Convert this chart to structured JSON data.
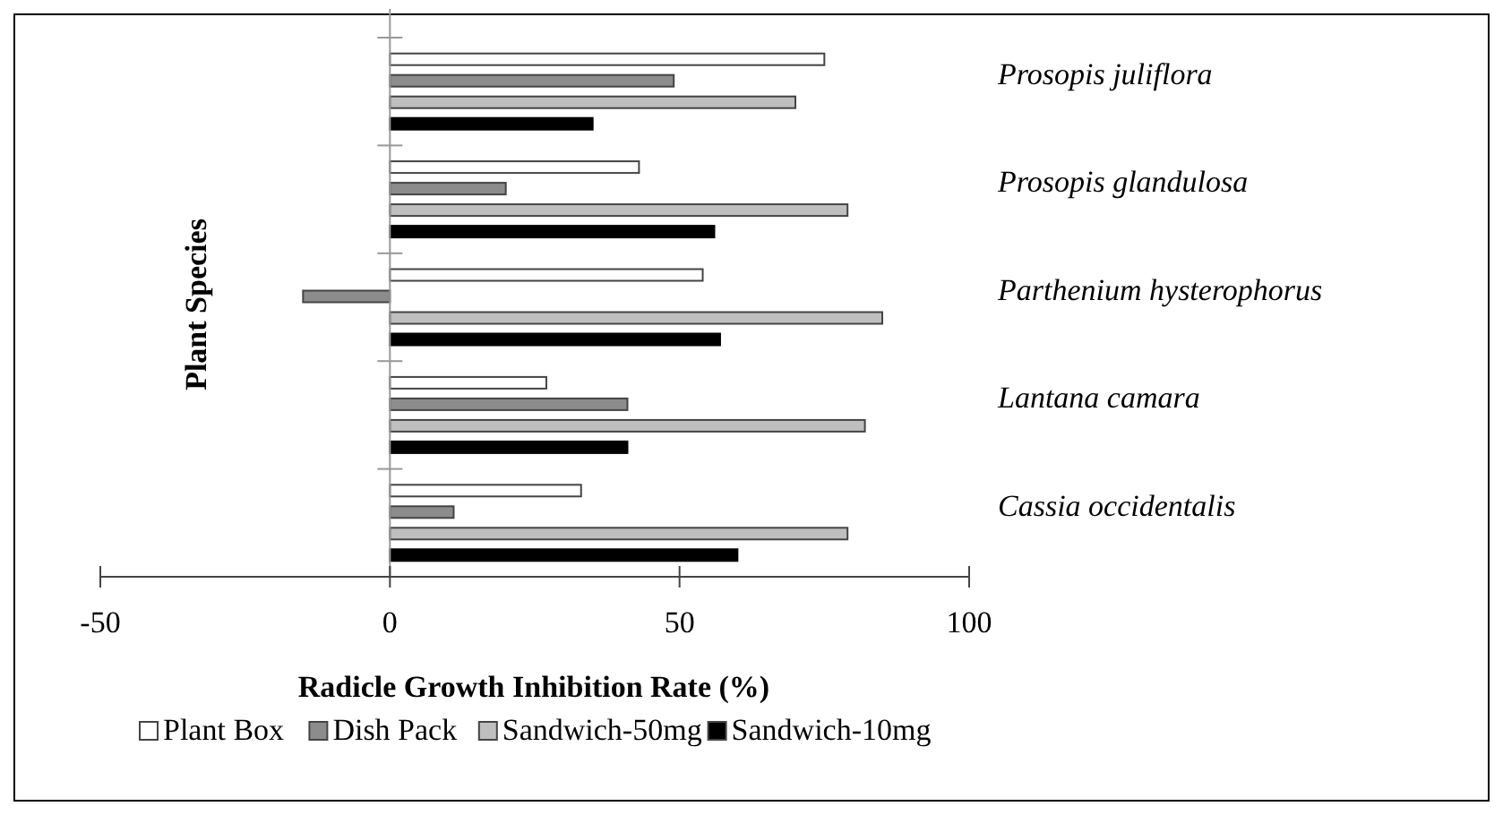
{
  "chart_data": {
    "type": "bar",
    "orientation": "horizontal",
    "xlabel": "Radicle Growth Inhibition Rate (%)",
    "ylabel": "Plant Species",
    "categories": [
      "Prosopis juliflora",
      "Prosopis glandulosa",
      "Parthenium hysterophorus",
      "Lantana camara",
      "Cassia occidentalis"
    ],
    "series": [
      {
        "name": "Plant Box",
        "color": "#ffffff",
        "values": [
          75,
          43,
          54,
          27,
          33
        ]
      },
      {
        "name": "Dish Pack",
        "color": "#8c8c8c",
        "values": [
          49,
          20,
          -15,
          41,
          11
        ]
      },
      {
        "name": "Sandwich-50mg",
        "color": "#bfbfbf",
        "values": [
          70,
          79,
          85,
          82,
          79
        ]
      },
      {
        "name": "Sandwich-10mg",
        "color": "#000000",
        "values": [
          35,
          56,
          57,
          41,
          60
        ]
      }
    ],
    "xlim": [
      -50,
      100
    ],
    "xticks": [
      -50,
      0,
      50,
      100
    ],
    "legend": "bottom"
  }
}
